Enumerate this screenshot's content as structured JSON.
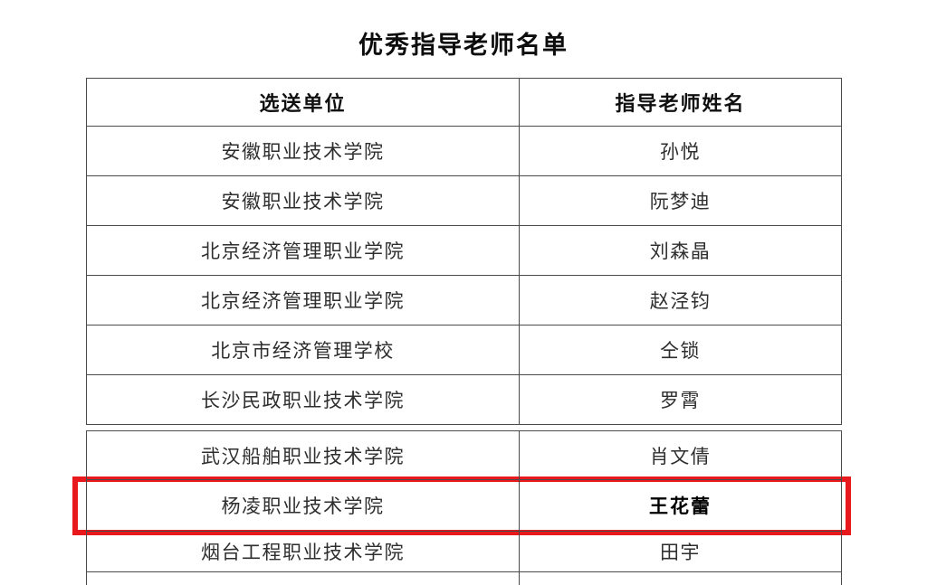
{
  "title": "优秀指导老师名单",
  "table": {
    "headers": [
      "选送单位",
      "指导老师姓名"
    ],
    "rows": [
      {
        "unit": "安徽职业技术学院",
        "teacher": "孙悦",
        "segment": 0,
        "highlighted": false
      },
      {
        "unit": "安徽职业技术学院",
        "teacher": "阮梦迪",
        "segment": 0,
        "highlighted": false
      },
      {
        "unit": "北京经济管理职业学院",
        "teacher": "刘森晶",
        "segment": 0,
        "highlighted": false
      },
      {
        "unit": "北京经济管理职业学院",
        "teacher": "赵泾钧",
        "segment": 0,
        "highlighted": false
      },
      {
        "unit": "北京市经济管理学校",
        "teacher": "仝锁",
        "segment": 0,
        "highlighted": false
      },
      {
        "unit": "长沙民政职业技术学院",
        "teacher": "罗霄",
        "segment": 0,
        "highlighted": false
      },
      {
        "unit": "武汉船舶职业技术学院",
        "teacher": "肖文倩",
        "segment": 1,
        "highlighted": false
      },
      {
        "unit": "杨凌职业技术学院",
        "teacher": "王花蕾",
        "segment": 1,
        "highlighted": true
      },
      {
        "unit": "烟台工程职业技术学院",
        "teacher": "田宇",
        "segment": 1,
        "highlighted": false
      },
      {
        "unit": "",
        "teacher": "",
        "segment": 1,
        "highlighted": false,
        "partial": true
      }
    ]
  },
  "highlight": {
    "color": "#e8191c"
  }
}
